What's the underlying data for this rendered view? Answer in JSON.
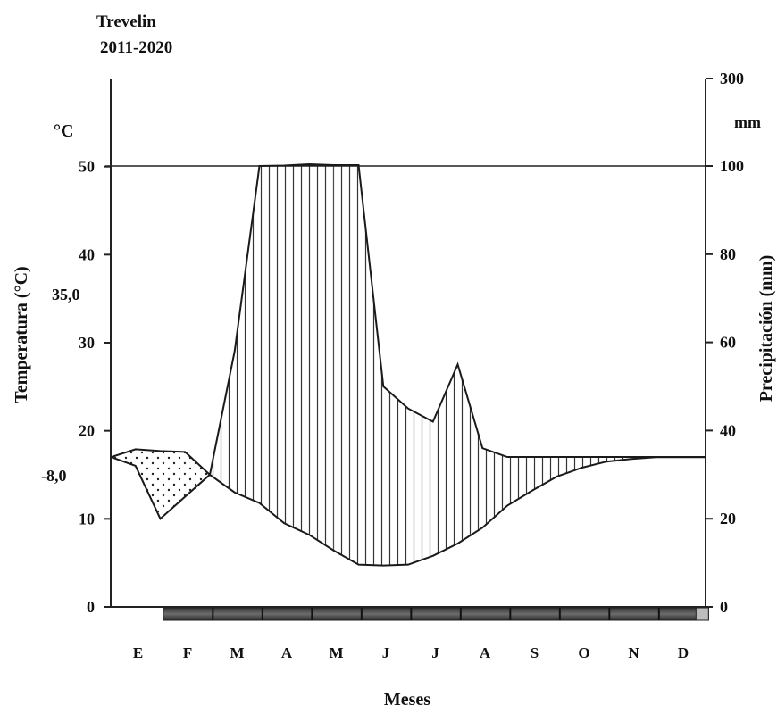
{
  "chart_data": {
    "type": "area",
    "title": "Trevelin",
    "subtitle": "2011-2020",
    "xlabel": "Meses",
    "ylabel_left": "Temperatura (°C)",
    "ylabel_right": "Precipitación  (mm)",
    "unit_left": "°C",
    "unit_right": "mm",
    "categories": [
      "E",
      "F",
      "M",
      "A",
      "M",
      "J",
      "J",
      "A",
      "S",
      "O",
      "N",
      "D"
    ],
    "left_axis": {
      "ylim": [
        0,
        60
      ],
      "ticks": [
        "0",
        "10",
        "20",
        "30",
        "40",
        "50"
      ]
    },
    "right_axis": {
      "ylim": [
        0,
        300
      ],
      "ticks": [
        "0",
        "20",
        "40",
        "60",
        "80",
        "100",
        "300"
      ]
    },
    "annotations": {
      "mean_temperature": "35,0",
      "min_temperature": "-8,0"
    },
    "series": [
      {
        "name": "Temperatura",
        "x": [
          0,
          0.5,
          1,
          1.5,
          2,
          2.5,
          3,
          3.5,
          4,
          4.5,
          5,
          5.5,
          6,
          6.5,
          7,
          7.5,
          8,
          8.5,
          9,
          9.5,
          10,
          10.5,
          11,
          11.5,
          12
        ],
        "values": [
          17,
          17.9,
          17.7,
          17.6,
          15,
          13,
          11.8,
          9.5,
          8.2,
          6.4,
          4.8,
          4.7,
          4.8,
          5.8,
          7.2,
          9,
          11.5,
          13.2,
          14.8,
          15.8,
          16.5,
          16.8,
          17,
          17,
          17
        ]
      },
      {
        "name": "Precipitación",
        "x": [
          0,
          0.5,
          1,
          1.5,
          2,
          2.5,
          3,
          3.5,
          4,
          4.5,
          5,
          5.5,
          6,
          6.5,
          7,
          7.5,
          8,
          8.5,
          9,
          9.5,
          10,
          10.5,
          11,
          11.5,
          12
        ],
        "values": [
          34,
          32,
          20,
          25,
          30,
          58,
          100,
          101,
          104,
          102,
          102,
          50,
          45,
          42,
          55,
          36,
          34,
          34,
          34,
          34,
          34,
          34,
          34,
          34,
          34
        ]
      }
    ],
    "dry_months_bar": {
      "months": 11,
      "start": "F"
    }
  }
}
